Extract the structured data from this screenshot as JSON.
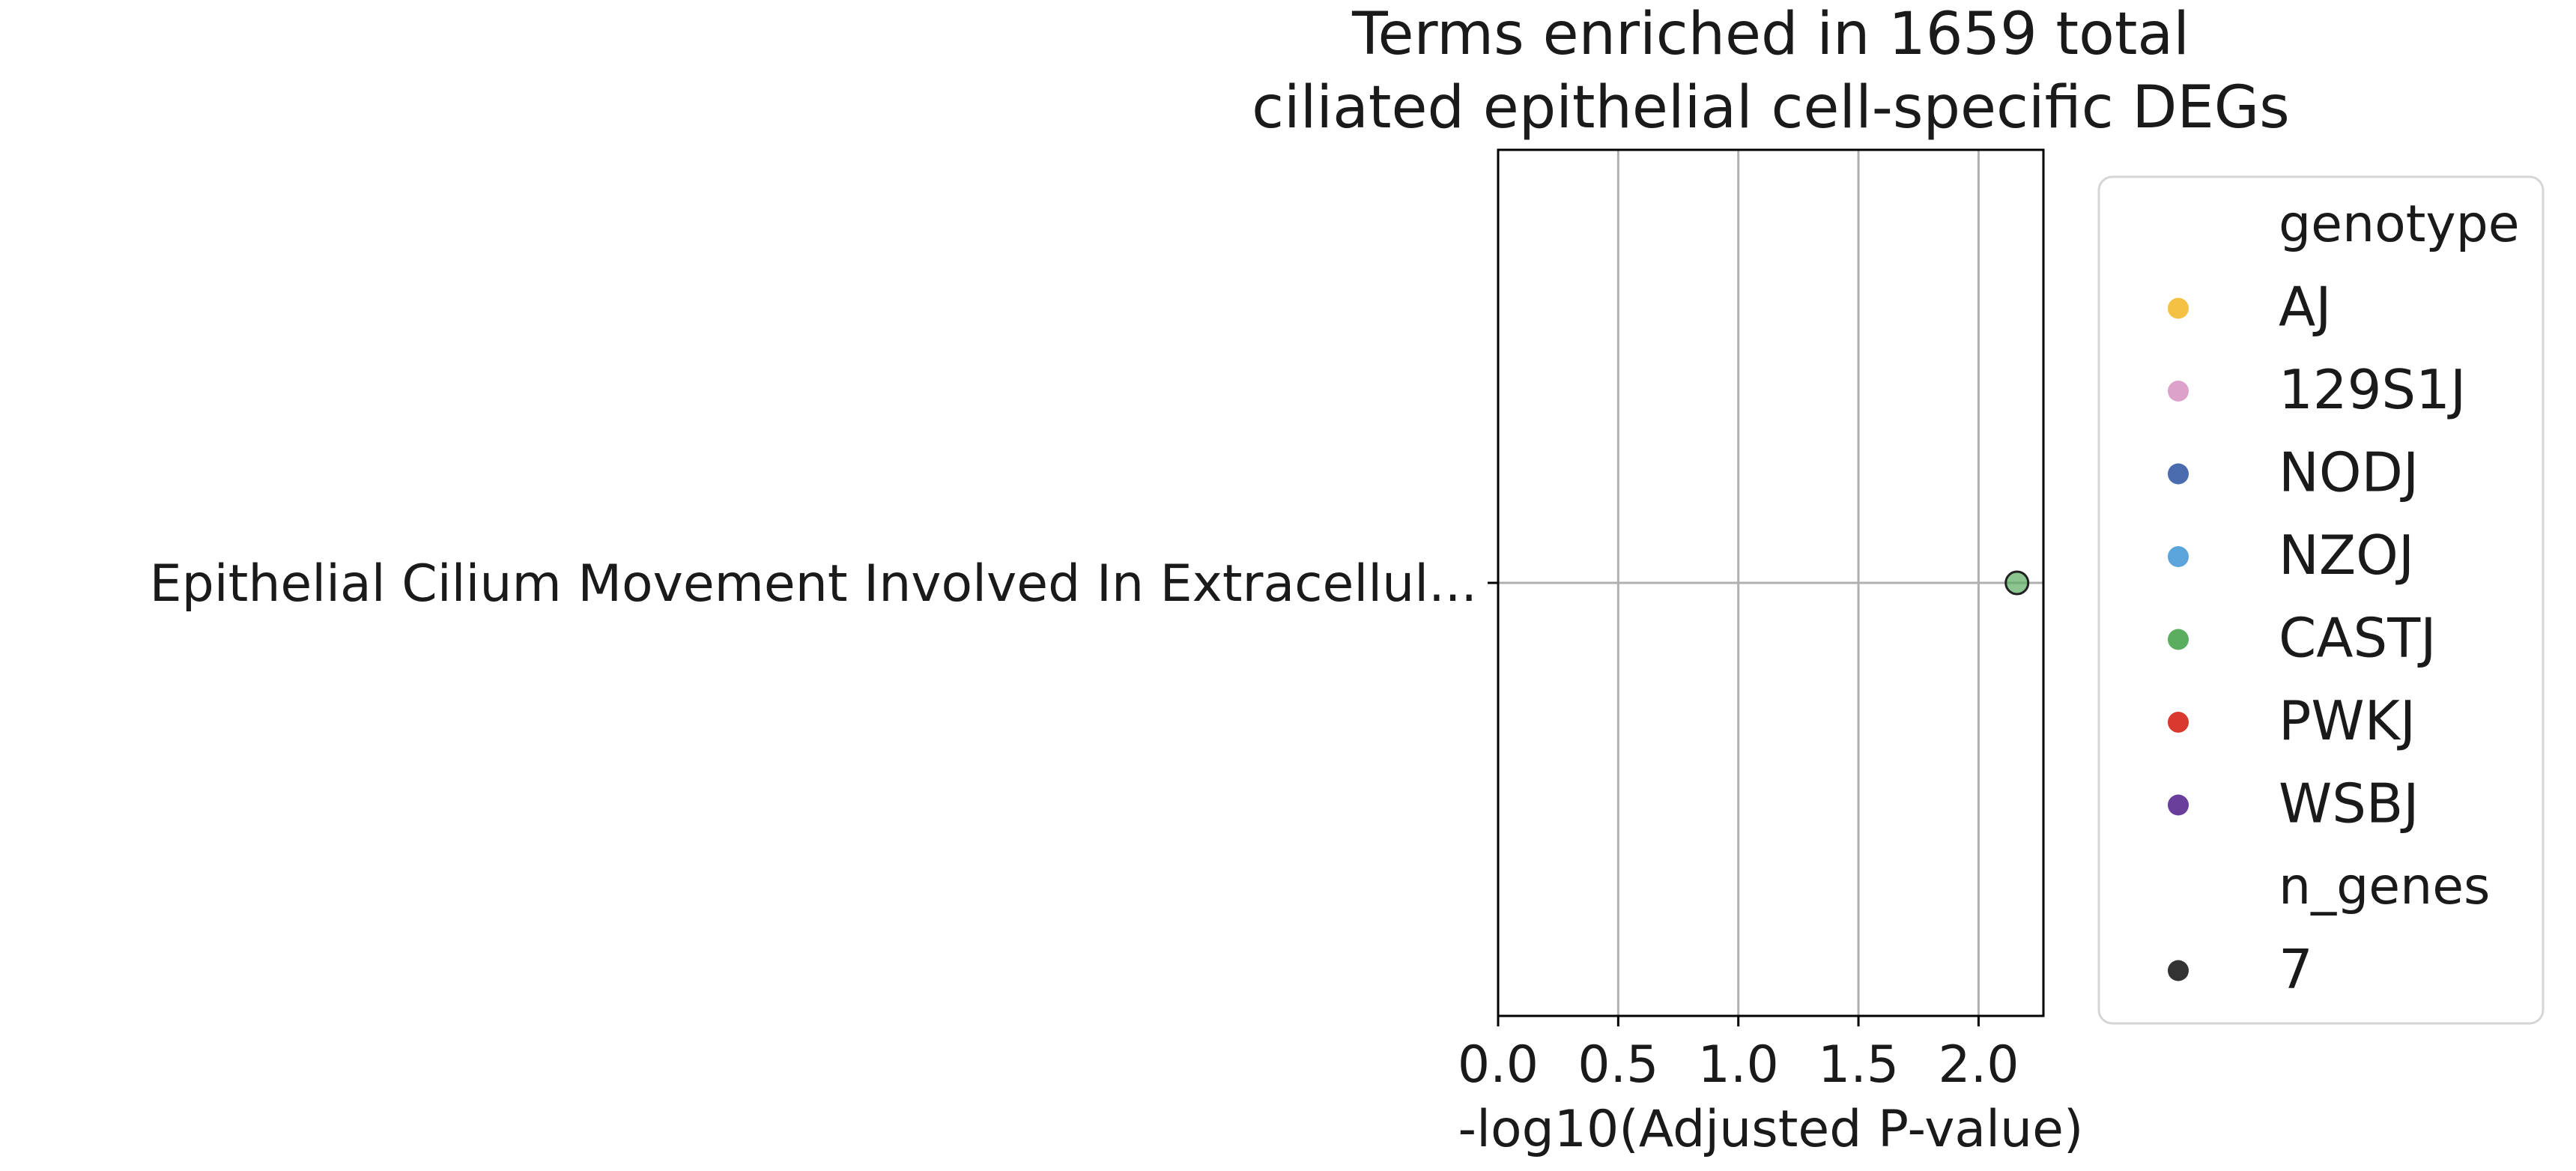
{
  "chart_data": {
    "type": "scatter",
    "title": [
      "Terms enriched in 1659 total",
      "ciliated epithelial cell-specific DEGs"
    ],
    "xlabel": "-log10(Adjusted P-value)",
    "ylabel": "",
    "xlim": [
      0.0,
      2.27
    ],
    "xticks": [
      "0.0",
      "0.5",
      "1.0",
      "1.5",
      "2.0"
    ],
    "grid": true,
    "categories": [
      "Epithelial Cilium Movement Involved In Extracellul..."
    ],
    "points": [
      {
        "term": "Epithelial Cilium Movement Involved In Extracellul...",
        "x": 2.16,
        "genotype": "CASTJ",
        "n_genes": 7
      }
    ],
    "legend": {
      "placement": "outside-right",
      "genotype_title": "genotype",
      "genotype": [
        {
          "name": "AJ",
          "color": "#f4c145"
        },
        {
          "name": "129S1J",
          "color": "#dca2c9"
        },
        {
          "name": "NODJ",
          "color": "#4a6cae"
        },
        {
          "name": "NZOJ",
          "color": "#5ba5dc"
        },
        {
          "name": "CASTJ",
          "color": "#5bad5f"
        },
        {
          "name": "PWKJ",
          "color": "#d93a2d"
        },
        {
          "name": "WSBJ",
          "color": "#6a3f9b"
        }
      ],
      "size_title": "n_genes",
      "sizes": [
        {
          "name": "7",
          "color": "#333333"
        }
      ]
    }
  }
}
